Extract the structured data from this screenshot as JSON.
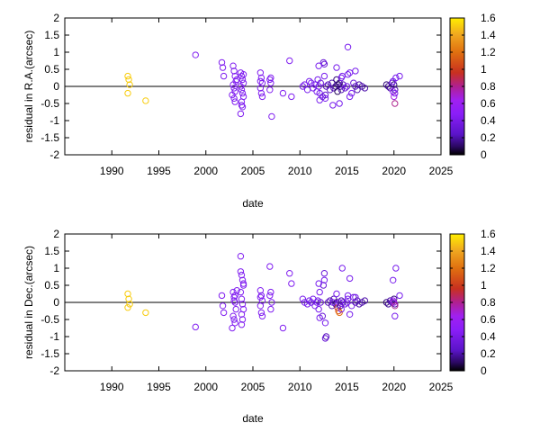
{
  "chart_data": [
    {
      "type": "scatter",
      "title": "",
      "xlabel": "date",
      "ylabel": "residual in R.A.(arcsec)",
      "xlim": [
        1985,
        2025
      ],
      "ylim": [
        -2,
        2
      ],
      "xticks": [
        "1990",
        "1995",
        "2000",
        "2005",
        "2010",
        "2015",
        "2020",
        "2025"
      ],
      "yticks": [
        "2",
        "1.5",
        "1",
        "0.5",
        "0",
        "-0.5",
        "-1",
        "-1.5",
        "-2"
      ],
      "zero_line": true,
      "colorbar": {
        "range": [
          0,
          1.6
        ],
        "ticks": [
          "1.6",
          "1.4",
          "1.2",
          "1",
          "0.8",
          "0.6",
          "0.4",
          "0.2",
          "0"
        ],
        "palette": [
          "#000000",
          "#3a0a8c",
          "#7a1ff0",
          "#a020f0",
          "#c03030",
          "#e06010",
          "#f0a020",
          "#ffee00"
        ]
      },
      "series": [
        {
          "x": [
            1991.7,
            1991.8,
            1991.9,
            1991.7,
            1993.6,
            1998.9,
            2001.7,
            2001.8,
            2001.9,
            2002.9,
            2003.0,
            2003.1,
            2003.2,
            2002.9,
            2003.0,
            2003.1,
            2002.8,
            2003.0,
            2003.1,
            2003.3,
            2003.7,
            2003.8,
            2003.9,
            2004.0,
            2003.7,
            2003.8,
            2003.9,
            2004.0,
            2003.8,
            2003.9,
            2003.7,
            2004.0,
            2003.8,
            2005.8,
            2005.9,
            2006.0,
            2005.8,
            2005.9,
            2006.0,
            2005.8,
            2006.8,
            2006.9,
            2006.8,
            2006.9,
            2007.0,
            2008.2,
            2008.9,
            2009.1,
            2010.3,
            2010.5,
            2010.8,
            2011.0,
            2011.2,
            2011.4,
            2011.6,
            2011.8,
            2011.9,
            2012.0,
            2012.1,
            2012.2,
            2012.4,
            2012.5,
            2012.6,
            2012.7,
            2012.8,
            2013.0,
            2013.2,
            2013.4,
            2013.6,
            2013.8,
            2013.9,
            2014.0,
            2014.1,
            2014.2,
            2014.3,
            2014.4,
            2014.6,
            2014.8,
            2015.0,
            2015.1,
            2015.3,
            2015.5,
            2015.7,
            2015.9,
            2016.1,
            2016.3,
            2016.6,
            2016.9,
            2012.0,
            2012.1,
            2012.6,
            2012.7,
            2013.9,
            2014.2,
            2014.4,
            2015.1,
            2015.3,
            2015.9,
            2013.5,
            2014.5,
            2019.2,
            2019.4,
            2019.6,
            2019.8,
            2020.0,
            2020.1,
            2019.9,
            2020.0,
            2020.1,
            2020.2,
            2019.9,
            2020.1,
            2020.6
          ],
          "y": [
            0.3,
            0.2,
            0.05,
            -0.2,
            -0.42,
            0.92,
            0.7,
            0.55,
            0.3,
            0.6,
            0.45,
            0.3,
            0.15,
            0.05,
            -0.05,
            -0.15,
            -0.25,
            -0.35,
            -0.45,
            0.2,
            0.4,
            0.3,
            0.2,
            0.1,
            0.0,
            -0.1,
            -0.2,
            -0.3,
            -0.45,
            -0.6,
            -0.8,
            0.35,
            -0.55,
            0.4,
            0.25,
            0.1,
            -0.05,
            -0.2,
            -0.3,
            0.15,
            0.2,
            0.1,
            -0.1,
            0.25,
            -0.88,
            -0.2,
            0.75,
            -0.3,
            0.0,
            0.05,
            -0.1,
            0.15,
            0.1,
            -0.05,
            0.05,
            -0.15,
            0.2,
            0.0,
            -0.2,
            0.1,
            -0.3,
            0.7,
            0.65,
            -0.25,
            0.0,
            0.05,
            -0.1,
            0.1,
            -0.05,
            0.0,
            0.2,
            -0.15,
            0.05,
            0.1,
            0.0,
            -0.1,
            0.05,
            -0.05,
            0.0,
            0.35,
            0.4,
            -0.2,
            0.1,
            0.0,
            -0.1,
            0.05,
            0.0,
            -0.05,
            0.6,
            -0.4,
            0.3,
            -0.35,
            0.55,
            -0.5,
            0.25,
            1.15,
            -0.3,
            0.45,
            -0.55,
            0.3,
            0.05,
            0.0,
            -0.05,
            0.1,
            0.05,
            -0.1,
            -0.15,
            -0.3,
            -0.5,
            0.25,
            0.15,
            -0.2,
            0.3
          ],
          "c": [
            1.5,
            1.5,
            1.5,
            1.5,
            1.5,
            0.5,
            0.5,
            0.5,
            0.5,
            0.5,
            0.5,
            0.5,
            0.5,
            0.5,
            0.5,
            0.5,
            0.5,
            0.5,
            0.5,
            0.5,
            0.5,
            0.5,
            0.5,
            0.5,
            0.5,
            0.5,
            0.5,
            0.5,
            0.5,
            0.5,
            0.5,
            0.5,
            0.5,
            0.5,
            0.5,
            0.5,
            0.5,
            0.5,
            0.5,
            0.5,
            0.5,
            0.5,
            0.5,
            0.5,
            0.5,
            0.5,
            0.5,
            0.5,
            0.45,
            0.45,
            0.45,
            0.45,
            0.45,
            0.45,
            0.45,
            0.45,
            0.45,
            0.45,
            0.45,
            0.4,
            0.4,
            0.4,
            0.4,
            0.4,
            0.35,
            0.35,
            0.35,
            0.3,
            0.3,
            0.25,
            0.2,
            0.15,
            0.15,
            0.2,
            0.25,
            0.3,
            0.35,
            0.4,
            0.45,
            0.45,
            0.45,
            0.45,
            0.4,
            0.35,
            0.3,
            0.3,
            0.3,
            0.3,
            0.45,
            0.45,
            0.45,
            0.45,
            0.45,
            0.45,
            0.45,
            0.45,
            0.45,
            0.45,
            0.45,
            0.45,
            0.2,
            0.25,
            0.3,
            0.35,
            0.2,
            0.3,
            0.6,
            0.7,
            0.8,
            0.45,
            0.45,
            0.45,
            0.45
          ]
        }
      ]
    },
    {
      "type": "scatter",
      "title": "",
      "xlabel": "date",
      "ylabel": "residual in Dec.(arcsec)",
      "xlim": [
        1985,
        2025
      ],
      "ylim": [
        -2,
        2
      ],
      "xticks": [
        "1990",
        "1995",
        "2000",
        "2005",
        "2010",
        "2015",
        "2020",
        "2025"
      ],
      "yticks": [
        "2",
        "1.5",
        "1",
        "0.5",
        "0",
        "-0.5",
        "-1",
        "-1.5",
        "-2"
      ],
      "zero_line": true,
      "colorbar": {
        "range": [
          0,
          1.6
        ],
        "ticks": [
          "1.6",
          "1.4",
          "1.2",
          "1",
          "0.8",
          "0.6",
          "0.4",
          "0.2",
          "0"
        ],
        "palette": [
          "#000000",
          "#3a0a8c",
          "#7a1ff0",
          "#a020f0",
          "#c03030",
          "#e06010",
          "#f0a020",
          "#ffee00"
        ]
      },
      "series": [
        {
          "x": [
            1991.7,
            1991.8,
            1991.9,
            1991.7,
            1993.6,
            1998.9,
            2001.7,
            2001.8,
            2001.9,
            2002.9,
            2003.0,
            2003.1,
            2003.2,
            2002.9,
            2003.0,
            2003.1,
            2002.8,
            2003.0,
            2003.1,
            2003.3,
            2003.7,
            2003.8,
            2003.9,
            2004.0,
            2003.7,
            2003.8,
            2003.9,
            2004.0,
            2003.8,
            2003.9,
            2003.7,
            2004.0,
            2003.8,
            2005.8,
            2005.9,
            2006.0,
            2005.8,
            2005.9,
            2006.0,
            2005.8,
            2006.8,
            2006.9,
            2006.8,
            2006.9,
            2007.0,
            2008.2,
            2008.9,
            2009.1,
            2010.3,
            2010.5,
            2010.8,
            2011.0,
            2011.2,
            2011.4,
            2011.6,
            2011.8,
            2011.9,
            2012.0,
            2012.1,
            2012.2,
            2012.4,
            2012.5,
            2012.6,
            2012.7,
            2012.8,
            2013.0,
            2013.2,
            2013.4,
            2013.6,
            2013.8,
            2013.9,
            2014.0,
            2014.1,
            2014.2,
            2014.3,
            2014.4,
            2014.6,
            2014.8,
            2015.0,
            2015.1,
            2015.3,
            2015.5,
            2015.7,
            2015.9,
            2016.1,
            2016.3,
            2016.6,
            2016.9,
            2012.0,
            2012.1,
            2012.6,
            2012.7,
            2013.9,
            2014.2,
            2014.4,
            2015.1,
            2015.3,
            2015.9,
            2013.5,
            2014.5,
            2019.2,
            2019.4,
            2019.6,
            2019.8,
            2020.0,
            2020.1,
            2019.9,
            2020.0,
            2020.1,
            2020.2,
            2019.9,
            2020.1,
            2020.6
          ],
          "y": [
            0.25,
            0.1,
            -0.05,
            -0.15,
            -0.3,
            -0.72,
            0.2,
            -0.1,
            -0.3,
            0.3,
            0.15,
            0.0,
            -0.2,
            -0.4,
            -0.5,
            -0.6,
            -0.75,
            0.05,
            0.2,
            0.35,
            1.35,
            0.8,
            0.65,
            0.5,
            0.3,
            0.1,
            -0.05,
            -0.2,
            -0.35,
            -0.5,
            0.9,
            0.55,
            -0.65,
            0.35,
            0.2,
            0.05,
            -0.1,
            -0.3,
            -0.4,
            0.15,
            1.05,
            0.3,
            0.2,
            -0.2,
            0.0,
            -0.75,
            0.85,
            0.55,
            0.1,
            0.0,
            -0.05,
            0.05,
            0.0,
            0.1,
            -0.1,
            0.0,
            0.05,
            -0.2,
            0.3,
            0.0,
            -0.4,
            0.5,
            0.85,
            -1.05,
            -1.0,
            0.0,
            0.05,
            -0.1,
            0.1,
            -0.05,
            0.0,
            -0.15,
            -0.25,
            -0.3,
            -0.1,
            0.05,
            0.0,
            -0.05,
            0.0,
            0.1,
            0.7,
            -0.1,
            0.15,
            0.0,
            0.05,
            -0.05,
            0.0,
            0.05,
            0.55,
            -0.45,
            0.65,
            -0.6,
            0.25,
            0.0,
            -0.2,
            0.2,
            -0.35,
            0.15,
            0.0,
            1.0,
            0.0,
            -0.05,
            0.05,
            0.0,
            0.1,
            -0.05,
            0.05,
            0.0,
            -0.1,
            1.0,
            0.65,
            -0.4,
            0.2
          ],
          "c": [
            1.5,
            1.5,
            1.5,
            1.5,
            1.5,
            0.5,
            0.5,
            0.5,
            0.5,
            0.5,
            0.5,
            0.5,
            0.5,
            0.5,
            0.5,
            0.5,
            0.5,
            0.5,
            0.5,
            0.5,
            0.5,
            0.5,
            0.5,
            0.5,
            0.5,
            0.5,
            0.5,
            0.5,
            0.5,
            0.5,
            0.5,
            0.5,
            0.5,
            0.5,
            0.5,
            0.5,
            0.5,
            0.5,
            0.5,
            0.5,
            0.5,
            0.5,
            0.5,
            0.5,
            0.5,
            0.5,
            0.5,
            0.5,
            0.45,
            0.45,
            0.45,
            0.45,
            0.45,
            0.45,
            0.45,
            0.45,
            0.45,
            0.45,
            0.45,
            0.4,
            0.4,
            0.4,
            0.4,
            0.4,
            0.35,
            0.35,
            0.35,
            0.3,
            0.3,
            0.25,
            0.2,
            0.9,
            1.1,
            1.2,
            0.25,
            0.3,
            0.35,
            0.4,
            0.45,
            0.45,
            0.45,
            0.45,
            0.4,
            0.35,
            0.3,
            0.3,
            0.3,
            0.3,
            0.45,
            0.45,
            0.45,
            0.45,
            0.45,
            0.45,
            0.45,
            0.45,
            0.45,
            0.45,
            0.45,
            0.45,
            0.2,
            0.25,
            0.3,
            0.35,
            0.2,
            0.3,
            0.6,
            0.7,
            0.8,
            0.45,
            0.45,
            0.45,
            0.45
          ]
        }
      ]
    }
  ]
}
